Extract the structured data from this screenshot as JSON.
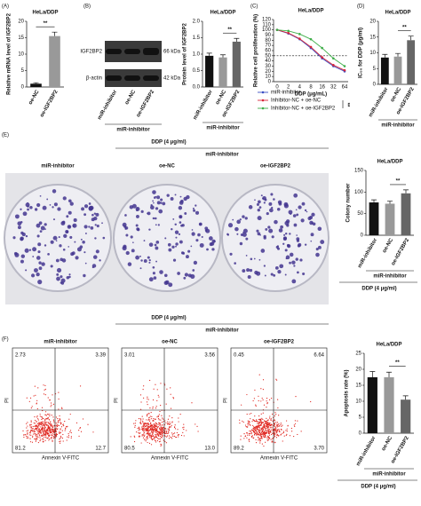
{
  "chart_data": [
    {
      "type": "bar",
      "panel": "(A)",
      "title": "HeLa/DDP",
      "ylabel": "Relative mRNA level of IGF2BP2",
      "categories": [
        "oe-NC",
        "oe-IGF2BP2"
      ],
      "values": [
        1,
        15.5
      ],
      "errors": [
        0.3,
        1.2
      ],
      "colors": [
        "#111111",
        "#999999"
      ],
      "ylim": [
        0,
        20
      ],
      "yticks": [
        0,
        5,
        10,
        15,
        20
      ],
      "annotation": "**"
    },
    {
      "type": "bar",
      "panel": "(B)",
      "title": "HeLa/DDP",
      "ylabel": "Protein level of IGF2BP2",
      "categories": [
        "miR-inhibitor",
        "oe-NC",
        "oe-IGF2BP2"
      ],
      "values": [
        0.95,
        0.9,
        1.38
      ],
      "errors": [
        0.08,
        0.08,
        0.1
      ],
      "colors": [
        "#111111",
        "#999999",
        "#666666"
      ],
      "ylim": [
        0,
        2
      ],
      "yticks": [
        {
          "value": 0,
          "label": "0.0"
        },
        {
          "value": 0.5,
          "label": "0.5"
        },
        {
          "value": 1,
          "label": "1.0"
        },
        {
          "value": 1.5,
          "label": "1.5"
        },
        {
          "value": 2,
          "label": "2.0"
        }
      ],
      "annotation": "**",
      "group": "miR-inhibitor"
    },
    {
      "type": "line",
      "panel": "(C)",
      "title": "HeLa/DDP",
      "ylabel": "Relative cell proliferation (%)",
      "xlabel": "DDP (μg/mL)",
      "categories": [
        "0",
        "2",
        "4",
        "8",
        "16",
        "32",
        "64"
      ],
      "series": [
        {
          "name": "miR-inhibitor",
          "color": "#3b4fc4",
          "values": [
            100,
            93,
            82,
            65,
            45,
            30,
            20
          ]
        },
        {
          "name": "Inhibitor-NC + oe-NC",
          "color": "#d8263a",
          "values": [
            100,
            94,
            83,
            67,
            47,
            32,
            22
          ]
        },
        {
          "name": "Inhibitor-NC + oe-IGF2BP2",
          "color": "#3fae49",
          "values": [
            100,
            98,
            92,
            82,
            65,
            45,
            30
          ]
        }
      ],
      "ylim": [
        0,
        120
      ],
      "yticks": [
        0,
        10,
        20,
        30,
        40,
        50,
        60,
        70,
        80,
        90,
        100,
        110,
        120
      ],
      "reference_line": 50,
      "annotation": "**"
    },
    {
      "type": "bar",
      "panel": "(D)",
      "title": "HeLa/DDP",
      "ylabel": "IC₅₀ for DDP (μg/ml)",
      "categories": [
        "miR-inhibitor",
        "oe-NC",
        "oe-IGF2BP2"
      ],
      "values": [
        8.5,
        8.8,
        14
      ],
      "errors": [
        1,
        1,
        1.3
      ],
      "colors": [
        "#111111",
        "#999999",
        "#666666"
      ],
      "ylim": [
        0,
        20
      ],
      "yticks": [
        0,
        5,
        10,
        15,
        20
      ],
      "annotation": "**",
      "group": "miR-inhibitor"
    },
    {
      "type": "bar",
      "panel": "(E)",
      "title": "HeLa/DDP",
      "ylabel": "Colony number",
      "categories": [
        "miR-inhibitor",
        "oe-NC",
        "oe-IGF2BP2"
      ],
      "values": [
        76,
        73,
        97
      ],
      "errors": [
        6,
        6,
        8
      ],
      "colors": [
        "#111111",
        "#999999",
        "#666666"
      ],
      "ylim": [
        0,
        150
      ],
      "yticks": [
        0,
        50,
        100,
        150
      ],
      "annotation": "**",
      "group": "miR-inhibitor",
      "footer": "DDP (4 μg/ml)"
    },
    {
      "type": "bar",
      "panel": "(F)",
      "title": "HeLa/DDP",
      "ylabel": "Apoptosis rate (%)",
      "categories": [
        "miR-inhibitor",
        "oe-NC",
        "oe-IGF2BP2"
      ],
      "values": [
        17.5,
        17.5,
        10.5
      ],
      "errors": [
        1.8,
        1.6,
        1.2
      ],
      "colors": [
        "#111111",
        "#999999",
        "#666666"
      ],
      "ylim": [
        0,
        25
      ],
      "yticks": [
        0,
        5,
        10,
        15,
        20,
        25
      ],
      "annotation": "**",
      "group": "miR-inhibitor",
      "footer": "DDP (4 μg/ml)"
    }
  ],
  "figure": {
    "blot": {
      "proteins": [
        "IGF2BP2",
        "β-actin"
      ],
      "sizes": [
        "66 kDa",
        "42 kDa"
      ],
      "lanes": [
        "miR-inhibitor",
        "oe-NC",
        "oe-IGF2BP2"
      ],
      "group": "miR-inhibitor"
    },
    "colony": {
      "header": "DDP (4 μg/ml)",
      "group": "miR-inhibitor",
      "labels": [
        "miR-inhibitor",
        "oe-NC",
        "oe-IGF2BP2"
      ]
    },
    "flow": {
      "header": "DDP (4 μg/ml)",
      "group": "miR-inhibitor",
      "labels": [
        "miR-inhibitor",
        "oe-NC",
        "oe-IGF2BP2"
      ],
      "y_axis": "PI",
      "x_axis": "Annexin V-FITC",
      "quadrants": [
        [
          "2.73",
          "3.39",
          "81.2",
          "12.7"
        ],
        [
          "3.01",
          "3.56",
          "80.5",
          "13.0"
        ],
        [
          "0.45",
          "6.64",
          "89.2",
          "3.70"
        ]
      ]
    }
  }
}
